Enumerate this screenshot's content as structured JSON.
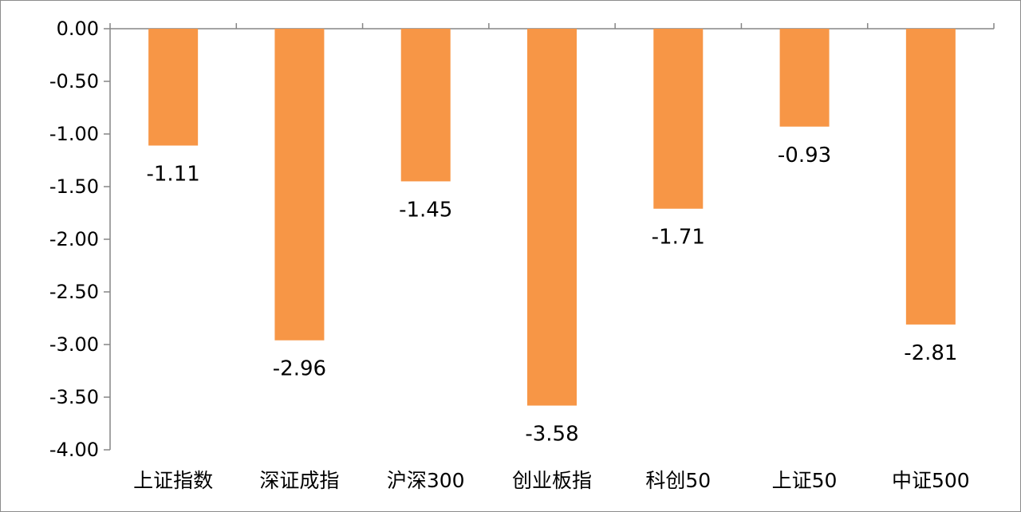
{
  "chart_data": {
    "type": "bar",
    "title": "",
    "xlabel": "",
    "ylabel": "",
    "categories": [
      "上证指数",
      "深证成指",
      "沪深300",
      "创业板指",
      "科创50",
      "上证50",
      "中证500"
    ],
    "values": [
      -1.11,
      -2.96,
      -1.45,
      -3.58,
      -1.71,
      -0.93,
      -2.81
    ],
    "data_labels": [
      "-1.11",
      "-2.96",
      "-1.45",
      "-3.58",
      "-1.71",
      "-0.93",
      "-2.81"
    ],
    "ylim": [
      -4.0,
      0.0
    ],
    "yticks": [
      0.0,
      -0.5,
      -1.0,
      -1.5,
      -2.0,
      -2.5,
      -3.0,
      -3.5,
      -4.0
    ],
    "ytick_labels": [
      "0.00",
      "-0.50",
      "-1.00",
      "-1.50",
      "-2.00",
      "-2.50",
      "-3.00",
      "-3.50",
      "-4.00"
    ],
    "bar_color": "#F79646",
    "axis_color": "#868686",
    "grid": false,
    "legend": "none"
  }
}
